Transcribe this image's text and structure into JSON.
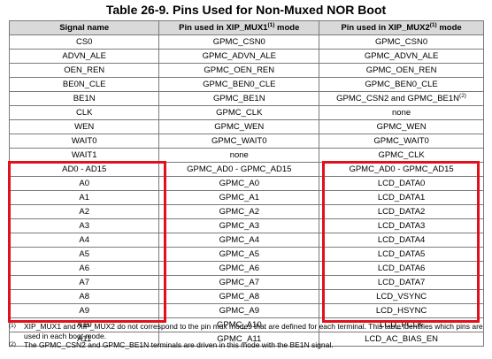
{
  "title": "Table 26-9. Pins Used for Non-Muxed NOR Boot",
  "headers": {
    "signal": "Signal name",
    "mux1_prefix": "Pin used in XIP_MUX1",
    "mux1_sup": "(1)",
    "mux1_suffix": " mode",
    "mux2_prefix": "Pin used in XIP_MUX2",
    "mux2_sup": "(1)",
    "mux2_suffix": " mode"
  },
  "rows": [
    [
      "CS0",
      "GPMC_CSN0",
      "GPMC_CSN0"
    ],
    [
      "ADVN_ALE",
      "GPMC_ADVN_ALE",
      "GPMC_ADVN_ALE"
    ],
    [
      "OEN_REN",
      "GPMC_OEN_REN",
      "GPMC_OEN_REN"
    ],
    [
      "BE0N_CLE",
      "GPMC_BEN0_CLE",
      "GPMC_BEN0_CLE"
    ],
    [
      "BE1N",
      "GPMC_BE1N",
      "GPMC_CSN2 and GPMC_BE1N"
    ],
    [
      "CLK",
      "GPMC_CLK",
      "none"
    ],
    [
      "WEN",
      "GPMC_WEN",
      "GPMC_WEN"
    ],
    [
      "WAIT0",
      "GPMC_WAIT0",
      "GPMC_WAIT0"
    ],
    [
      "WAIT1",
      "none",
      "GPMC_CLK"
    ],
    [
      "AD0 - AD15",
      "GPMC_AD0 - GPMC_AD15",
      "GPMC_AD0 - GPMC_AD15"
    ],
    [
      "A0",
      "GPMC_A0",
      "LCD_DATA0"
    ],
    [
      "A1",
      "GPMC_A1",
      "LCD_DATA1"
    ],
    [
      "A2",
      "GPMC_A2",
      "LCD_DATA2"
    ],
    [
      "A3",
      "GPMC_A3",
      "LCD_DATA3"
    ],
    [
      "A4",
      "GPMC_A4",
      "LCD_DATA4"
    ],
    [
      "A5",
      "GPMC_A5",
      "LCD_DATA5"
    ],
    [
      "A6",
      "GPMC_A6",
      "LCD_DATA6"
    ],
    [
      "A7",
      "GPMC_A7",
      "LCD_DATA7"
    ],
    [
      "A8",
      "GPMC_A8",
      "LCD_VSYNC"
    ],
    [
      "A9",
      "GPMC_A9",
      "LCD_HSYNC"
    ],
    [
      "A10",
      "GPMC_A10",
      "LCD_PCLK"
    ],
    [
      "A11",
      "GPMC_A11",
      "LCD_AC_BIAS_EN"
    ]
  ],
  "row_superscripts": {
    "4": {
      "col": 2,
      "sup": "(2)"
    }
  },
  "footnotes": [
    {
      "mark": "(1)",
      "text": "XIP_MUX1 and XIP_MUX2 do not correspond to the pin mux modes that are defined for each terminal. This table identifies which pins are used in each boot mode."
    },
    {
      "mark": "(2)",
      "text": "The GPMC_CSN2 and GPMC_BE1N terminals are driven in this mode with the BE1N signal."
    }
  ],
  "highlight_color": "#e0101c",
  "header_bg": "#d9d9d9"
}
